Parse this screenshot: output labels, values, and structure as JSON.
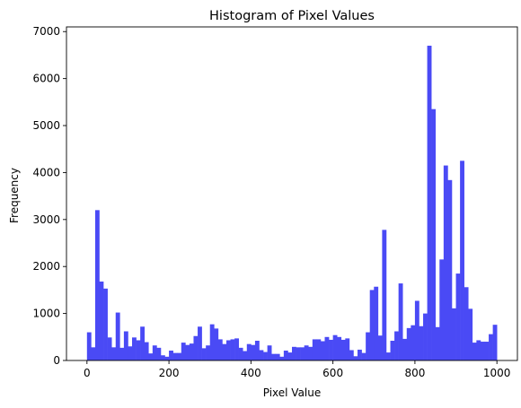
{
  "chart_data": {
    "type": "bar",
    "title": "Histogram of Pixel Values",
    "xlabel": "Pixel Value",
    "ylabel": "Frequency",
    "xlim": [
      -50,
      1050
    ],
    "ylim": [
      0,
      7100
    ],
    "x_ticks": [
      0,
      200,
      400,
      600,
      800,
      1000
    ],
    "y_ticks": [
      0,
      1000,
      2000,
      3000,
      4000,
      5000,
      6000,
      7000
    ],
    "bin_start": 0,
    "bin_width": 10,
    "bar_color": "#4a4af5",
    "grid": false,
    "values": [
      600,
      280,
      3200,
      1680,
      1530,
      490,
      280,
      1020,
      270,
      620,
      300,
      490,
      430,
      720,
      390,
      150,
      320,
      270,
      110,
      80,
      210,
      160,
      160,
      380,
      330,
      360,
      520,
      720,
      260,
      320,
      770,
      680,
      450,
      350,
      430,
      450,
      470,
      270,
      200,
      350,
      330,
      420,
      220,
      180,
      320,
      140,
      140,
      80,
      210,
      170,
      290,
      280,
      280,
      320,
      290,
      450,
      450,
      410,
      500,
      440,
      540,
      500,
      440,
      470,
      220,
      90,
      230,
      160,
      600,
      1500,
      1570,
      530,
      2780,
      170,
      420,
      620,
      1640,
      460,
      690,
      750,
      1270,
      730,
      1000,
      6700,
      5350,
      710,
      2150,
      4150,
      3840,
      1110,
      1850,
      4250,
      1560,
      1100,
      380,
      430,
      400,
      400,
      560,
      760
    ]
  }
}
